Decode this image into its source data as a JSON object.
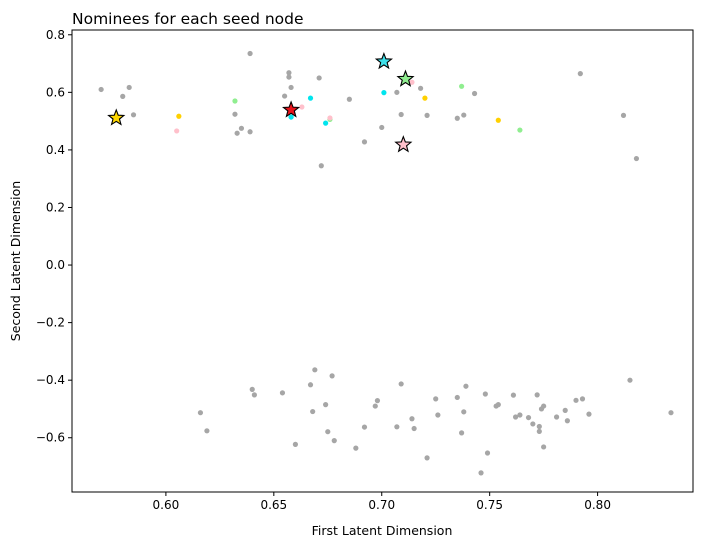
{
  "chart_data": {
    "type": "scatter",
    "title": "Nominees for each seed node",
    "xlabel": "First Latent Dimension",
    "ylabel": "Second Latent Dimension",
    "xlim": [
      0.5565,
      0.8442
    ],
    "ylim": [
      -0.7885,
      0.8166
    ],
    "xticks": [
      0.6,
      0.65,
      0.7,
      0.75,
      0.8
    ],
    "xtick_labels": [
      "0.60",
      "0.65",
      "0.70",
      "0.75",
      "0.80"
    ],
    "yticks": [
      -0.6,
      -0.4,
      -0.2,
      0.0,
      0.2,
      0.4,
      0.6,
      0.8
    ],
    "ytick_labels": [
      "−0.6",
      "−0.4",
      "−0.2",
      "0.0",
      "0.2",
      "0.4",
      "0.6",
      "0.8"
    ],
    "grid": false,
    "legend": "none",
    "series": [
      {
        "color": "#a6a6a6",
        "marker": "dot",
        "points": [
          [
            0.57,
            0.61
          ],
          [
            0.58,
            0.586
          ],
          [
            0.583,
            0.617
          ],
          [
            0.585,
            0.522
          ],
          [
            0.639,
            0.735
          ],
          [
            0.632,
            0.524
          ],
          [
            0.633,
            0.458
          ],
          [
            0.635,
            0.475
          ],
          [
            0.639,
            0.463
          ],
          [
            0.655,
            0.587
          ],
          [
            0.657,
            0.653
          ],
          [
            0.657,
            0.668
          ],
          [
            0.658,
            0.617
          ],
          [
            0.671,
            0.65
          ],
          [
            0.672,
            0.345
          ],
          [
            0.685,
            0.576
          ],
          [
            0.692,
            0.428
          ],
          [
            0.7,
            0.478
          ],
          [
            0.707,
            0.6
          ],
          [
            0.709,
            0.523
          ],
          [
            0.718,
            0.614
          ],
          [
            0.721,
            0.52
          ],
          [
            0.735,
            0.51
          ],
          [
            0.738,
            0.521
          ],
          [
            0.743,
            0.596
          ],
          [
            0.792,
            0.665
          ],
          [
            0.812,
            0.52
          ],
          [
            0.818,
            0.37
          ],
          [
            0.616,
            -0.513
          ],
          [
            0.619,
            -0.576
          ],
          [
            0.64,
            -0.432
          ],
          [
            0.641,
            -0.451
          ],
          [
            0.654,
            -0.444
          ],
          [
            0.66,
            -0.623
          ],
          [
            0.667,
            -0.416
          ],
          [
            0.668,
            -0.509
          ],
          [
            0.669,
            -0.364
          ],
          [
            0.674,
            -0.485
          ],
          [
            0.675,
            -0.579
          ],
          [
            0.677,
            -0.385
          ],
          [
            0.678,
            -0.61
          ],
          [
            0.688,
            -0.636
          ],
          [
            0.692,
            -0.563
          ],
          [
            0.697,
            -0.49
          ],
          [
            0.698,
            -0.471
          ],
          [
            0.707,
            -0.562
          ],
          [
            0.709,
            -0.413
          ],
          [
            0.714,
            -0.534
          ],
          [
            0.715,
            -0.568
          ],
          [
            0.721,
            -0.67
          ],
          [
            0.725,
            -0.465
          ],
          [
            0.726,
            -0.521
          ],
          [
            0.735,
            -0.46
          ],
          [
            0.737,
            -0.583
          ],
          [
            0.738,
            -0.51
          ],
          [
            0.739,
            -0.421
          ],
          [
            0.746,
            -0.722
          ],
          [
            0.748,
            -0.448
          ],
          [
            0.749,
            -0.653
          ],
          [
            0.753,
            -0.49
          ],
          [
            0.754,
            -0.485
          ],
          [
            0.761,
            -0.452
          ],
          [
            0.762,
            -0.528
          ],
          [
            0.764,
            -0.521
          ],
          [
            0.768,
            -0.53
          ],
          [
            0.77,
            -0.552
          ],
          [
            0.772,
            -0.451
          ],
          [
            0.773,
            -0.561
          ],
          [
            0.773,
            -0.578
          ],
          [
            0.774,
            -0.5
          ],
          [
            0.775,
            -0.49
          ],
          [
            0.775,
            -0.632
          ],
          [
            0.781,
            -0.528
          ],
          [
            0.785,
            -0.505
          ],
          [
            0.786,
            -0.541
          ],
          [
            0.79,
            -0.47
          ],
          [
            0.793,
            -0.465
          ],
          [
            0.796,
            -0.518
          ],
          [
            0.815,
            -0.4
          ],
          [
            0.834,
            -0.513
          ]
        ]
      },
      {
        "color": "#ffd000",
        "marker": "dot",
        "points": [
          [
            0.606,
            0.517
          ],
          [
            0.72,
            0.58
          ],
          [
            0.754,
            0.503
          ]
        ]
      },
      {
        "color": "#00e5ee",
        "marker": "dot",
        "points": [
          [
            0.658,
            0.514
          ],
          [
            0.667,
            0.58
          ],
          [
            0.674,
            0.493
          ],
          [
            0.701,
            0.599
          ]
        ]
      },
      {
        "color": "#90ee90",
        "marker": "dot",
        "points": [
          [
            0.632,
            0.57
          ],
          [
            0.676,
            0.506
          ],
          [
            0.737,
            0.621
          ],
          [
            0.764,
            0.469
          ]
        ]
      },
      {
        "color": "#ffc0cb",
        "marker": "dot",
        "points": [
          [
            0.605,
            0.466
          ],
          [
            0.663,
            0.549
          ],
          [
            0.676,
            0.511
          ],
          [
            0.714,
            0.635
          ]
        ]
      },
      {
        "color": "#ffd700",
        "marker": "star",
        "points": [
          [
            0.577,
            0.511
          ]
        ]
      },
      {
        "color": "#e8141c",
        "marker": "star",
        "points": [
          [
            0.658,
            0.539
          ]
        ]
      },
      {
        "color": "#3ee0ea",
        "marker": "star",
        "points": [
          [
            0.701,
            0.707
          ]
        ]
      },
      {
        "color": "#90ee90",
        "marker": "star",
        "points": [
          [
            0.711,
            0.646
          ]
        ]
      },
      {
        "color": "#ffc0cb",
        "marker": "star",
        "points": [
          [
            0.71,
            0.418
          ]
        ]
      }
    ]
  }
}
